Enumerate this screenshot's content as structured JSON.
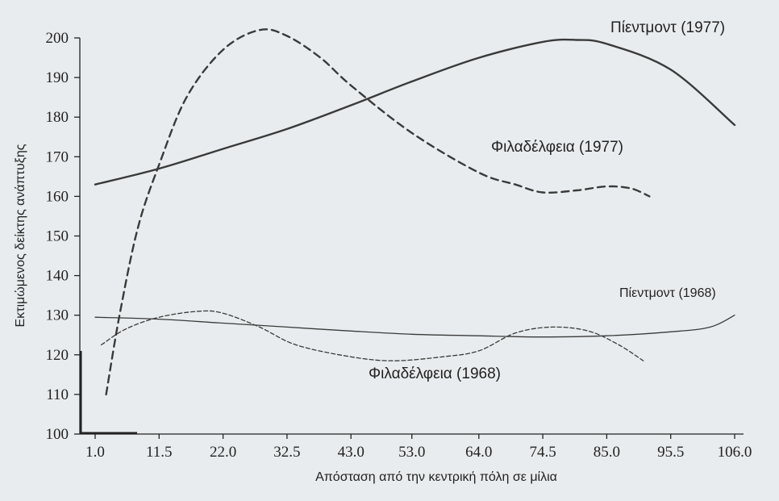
{
  "chart_data": {
    "type": "line",
    "title": "",
    "xlabel": "Απόσταση από την κεντρική πόλη σε μίλια",
    "ylabel": "Εκτιμώμενος δείκτης ανάπτυξης",
    "x_ticks": [
      "1.0",
      "11.5",
      "22.0",
      "32.5",
      "43.0",
      "53.0",
      "64.0",
      "74.5",
      "85.0",
      "95.5",
      "106.0"
    ],
    "y_ticks": [
      100,
      110,
      120,
      130,
      140,
      150,
      160,
      170,
      180,
      190,
      200
    ],
    "xlim": [
      1.0,
      106.0
    ],
    "ylim": [
      100,
      200
    ],
    "grid": false,
    "legend": "none (series labelled directly on the lines)",
    "series": [
      {
        "name": "Πίεντμοντ (1977)",
        "style": "solid-thick",
        "x": [
          1,
          11.5,
          22,
          32.5,
          43,
          53,
          64,
          74.5,
          80,
          85,
          95.5,
          106
        ],
        "y": [
          163,
          167,
          172,
          177,
          183,
          189,
          195,
          199,
          199.5,
          198.5,
          192,
          178
        ]
      },
      {
        "name": "Φιλαδέλφεια (1977)",
        "style": "dashed-thick",
        "x": [
          2.8,
          5,
          8,
          11.5,
          16,
          22,
          28,
          32.5,
          38,
          43,
          53,
          64,
          70,
          74.5,
          80,
          85,
          89,
          92
        ],
        "y": [
          110,
          130,
          152,
          168,
          185,
          197,
          202,
          200.5,
          195,
          188,
          176,
          166,
          163,
          161,
          161.5,
          162.5,
          162,
          160
        ]
      },
      {
        "name": "Πίεντμοντ (1968)",
        "style": "solid-thin",
        "x": [
          1,
          11.5,
          22,
          32.5,
          43,
          53,
          64,
          74.5,
          85,
          95.5,
          102,
          106
        ],
        "y": [
          129.5,
          129,
          128,
          127,
          126,
          125.2,
          124.8,
          124.5,
          124.8,
          125.8,
          127,
          130
        ]
      },
      {
        "name": "Φιλαδέλφεια (1968)",
        "style": "dashed-thin",
        "x": [
          2,
          6,
          11.5,
          18,
          22,
          28,
          34,
          43,
          50,
          58,
          64,
          70,
          76,
          82,
          87,
          91
        ],
        "y": [
          122.5,
          126.5,
          129.5,
          131,
          130.5,
          127,
          122.5,
          119.5,
          118.5,
          119.5,
          121,
          125.5,
          127,
          126,
          122.5,
          118.5
        ]
      }
    ]
  }
}
